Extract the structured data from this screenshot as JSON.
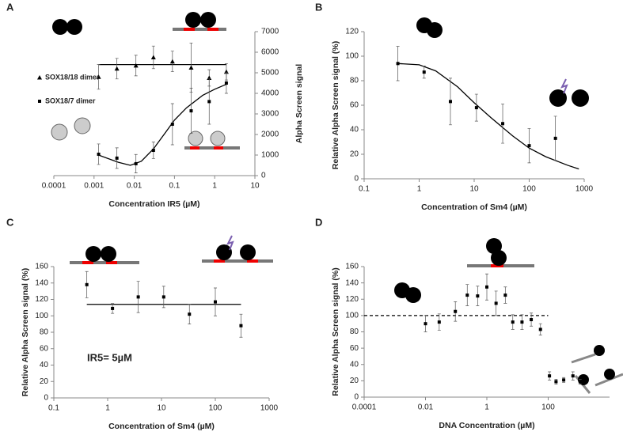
{
  "chart_data": [
    {
      "panel": "A",
      "type": "scatter",
      "x_label": "Concentration IR5 (µM)",
      "y_label": "Alpha Screen signal",
      "x_scale": "log",
      "y_axis": "right",
      "legend": "left",
      "xlim": [
        0.0001,
        10
      ],
      "xticks": [
        0.0001,
        0.001,
        0.01,
        0.1,
        1,
        10
      ],
      "ylim": [
        0,
        7000
      ],
      "yticks": [
        0,
        1000,
        2000,
        3000,
        4000,
        5000,
        6000,
        7000
      ],
      "series": [
        {
          "name": "SOX18/18 dimer",
          "marker": "triangle",
          "color": "#000000",
          "x": [
            0.0013,
            0.0037,
            0.011,
            0.03,
            0.089,
            0.26,
            0.73,
            1.95
          ],
          "values": [
            4800,
            5200,
            5350,
            5750,
            5550,
            5250,
            4750,
            5050
          ],
          "errors": [
            600,
            500,
            500,
            550,
            500,
            1200,
            400,
            400
          ],
          "fit": {
            "x": [
              0.0013,
              1.95
            ],
            "values": [
              5400,
              5400
            ]
          }
        },
        {
          "name": "SOX18/7 dimer",
          "marker": "square",
          "color": "#000000",
          "x": [
            0.0013,
            0.0037,
            0.011,
            0.03,
            0.089,
            0.26,
            0.73,
            1.95
          ],
          "values": [
            1040,
            850,
            580,
            1230,
            2500,
            3150,
            3600,
            4500
          ],
          "errors": [
            500,
            500,
            450,
            400,
            1000,
            1100,
            1100,
            500
          ],
          "fit": {
            "x": [
              0.0013,
              0.004,
              0.008,
              0.015,
              0.03,
              0.06,
              0.1,
              0.2,
              0.5,
              1,
              2
            ],
            "values": [
              1000,
              650,
              500,
              700,
              1300,
              2100,
              2700,
              3300,
              3900,
              4200,
              4450
            ]
          }
        }
      ]
    },
    {
      "panel": "B",
      "type": "scatter",
      "x_label": "Concentration of Sm4 (µM)",
      "y_label": "Relative Alpha Screen signal (%)",
      "x_scale": "log",
      "y_axis": "left",
      "xlim": [
        0.1,
        1000
      ],
      "xticks": [
        0.1,
        1,
        10,
        100,
        1000
      ],
      "ylim": [
        0,
        120
      ],
      "yticks": [
        0,
        20,
        40,
        60,
        80,
        100,
        120
      ],
      "series": [
        {
          "marker": "square",
          "color": "#000000",
          "x": [
            0.41,
            1.23,
            3.7,
            11,
            33,
            100,
            300
          ],
          "values": [
            94,
            87,
            63,
            58,
            45,
            27,
            33
          ],
          "errors": [
            14,
            5,
            19,
            11,
            16,
            14,
            18
          ],
          "fit": {
            "x": [
              0.41,
              1,
              2,
              5,
              10,
              20,
              50,
              100,
              200,
              500,
              800
            ],
            "values": [
              94,
              93,
              88,
              75,
              62,
              50,
              35,
              25,
              18,
              11,
              8
            ]
          }
        }
      ]
    },
    {
      "panel": "C",
      "type": "scatter",
      "x_label": "Concentration of Sm4 (µM)",
      "y_label": "Relative Alpha Screen signal (%)",
      "x_scale": "log",
      "y_axis": "left",
      "annotation": "IR5= 5µM",
      "xlim": [
        0.1,
        1000
      ],
      "xticks": [
        0.1,
        1,
        10,
        100,
        1000
      ],
      "ylim": [
        0,
        160
      ],
      "yticks": [
        0,
        20,
        40,
        60,
        80,
        100,
        120,
        140,
        160
      ],
      "series": [
        {
          "marker": "square",
          "color": "#000000",
          "x": [
            0.41,
            1.23,
            3.7,
            11,
            33,
            100,
            300
          ],
          "values": [
            138,
            109,
            123,
            123,
            102,
            117,
            88
          ],
          "errors": [
            16,
            6,
            19,
            13,
            12,
            17,
            14
          ],
          "fit": {
            "x": [
              0.41,
              300
            ],
            "values": [
              114,
              114
            ]
          }
        }
      ]
    },
    {
      "panel": "D",
      "type": "scatter",
      "x_label": "DNA Concentration (µM)",
      "y_label": "Relative Alpha Screen signal (%)",
      "x_scale": "log",
      "y_axis": "left",
      "xlim": [
        0.0001,
        10000
      ],
      "xticks": [
        0.0001,
        0.01,
        1,
        100
      ],
      "ylim": [
        0,
        160
      ],
      "yticks": [
        0,
        20,
        40,
        60,
        80,
        100,
        120,
        140,
        160
      ],
      "ref_line": {
        "y": 100,
        "x": [
          0.0001,
          100
        ],
        "style": "dashed"
      },
      "series": [
        {
          "marker": "square",
          "color": "#000000",
          "x": [
            0.01,
            0.028,
            0.094,
            0.23,
            0.5,
            1,
            2,
            4,
            7,
            14,
            28,
            56,
            110,
            180,
            320,
            640,
            1100
          ],
          "values": [
            90,
            92,
            105,
            125,
            124,
            135,
            115,
            125,
            92,
            92,
            95,
            83,
            26,
            19,
            21,
            26,
            19
          ],
          "errors": [
            10,
            10,
            12,
            13,
            12,
            16,
            15,
            10,
            9,
            9,
            8,
            7,
            5,
            3,
            3,
            5,
            3
          ]
        }
      ]
    }
  ]
}
